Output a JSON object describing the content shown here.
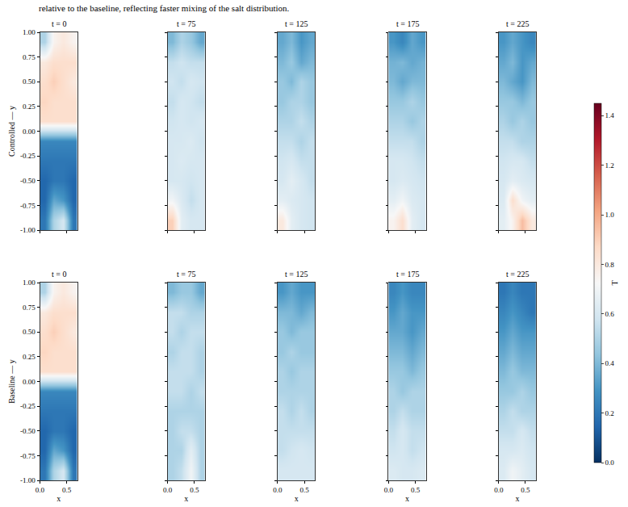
{
  "chart_data": {
    "type": "heatmap",
    "subtitle": "relative to the baseline, reflecting faster mixing of the salt distribution.",
    "panel_titles": [
      "t = 0",
      "t = 75",
      "t = 125",
      "t = 175",
      "t = 225"
    ],
    "xlabel": "x",
    "x": [
      0.0875,
      0.2625,
      0.4375,
      0.6125
    ],
    "y": [
      -0.9,
      -0.7,
      -0.5,
      -0.3,
      -0.1,
      0.1,
      0.3,
      0.5,
      0.7,
      0.9
    ],
    "xlim": [
      0,
      0.7
    ],
    "xticks": [
      {
        "value": 0,
        "label": "0.0"
      },
      0.5
    ],
    "ylim": [
      -1,
      1
    ],
    "yticks": [
      {
        "value": -1,
        "label": "-1.00"
      },
      -0.75,
      {
        "value": -0.5,
        "label": "-0.50"
      },
      -0.25,
      {
        "value": 0,
        "label": "0.00"
      },
      0.25,
      {
        "value": 0.5,
        "label": "0.50"
      },
      0.75,
      {
        "value": 1,
        "label": "1.00"
      }
    ],
    "colorbar": {
      "label": "T",
      "range": [
        0,
        1.45
      ],
      "ticks": [
        {
          "value": 0,
          "label": "0.0"
        },
        0.2,
        0.4,
        0.6,
        0.8,
        {
          "value": 1,
          "label": "1.0"
        },
        1.2,
        1.4
      ]
    },
    "rows": [
      {
        "ylabel": "Controlled — y",
        "cells": [
          [
            [
              0.2,
              0.5,
              0.6,
              0.2
            ],
            [
              0.15,
              0.35,
              0.3,
              0.15
            ],
            [
              0.15,
              0.2,
              0.2,
              0.15
            ],
            [
              0.2,
              0.2,
              0.2,
              0.2
            ],
            [
              0.25,
              0.25,
              0.25,
              0.25
            ],
            [
              0.85,
              0.85,
              0.85,
              0.85
            ],
            [
              0.88,
              0.85,
              0.85,
              0.85
            ],
            [
              0.85,
              0.9,
              0.85,
              0.8
            ],
            [
              0.8,
              0.85,
              0.85,
              0.85
            ],
            [
              0.5,
              0.75,
              0.8,
              0.75
            ]
          ],
          [
            [
              0.9,
              0.65,
              0.6,
              0.6
            ],
            [
              0.7,
              0.62,
              0.55,
              0.6
            ],
            [
              0.6,
              0.6,
              0.58,
              0.6
            ],
            [
              0.6,
              0.62,
              0.6,
              0.6
            ],
            [
              0.6,
              0.6,
              0.62,
              0.58
            ],
            [
              0.58,
              0.6,
              0.58,
              0.6
            ],
            [
              0.55,
              0.6,
              0.58,
              0.55
            ],
            [
              0.58,
              0.55,
              0.6,
              0.58
            ],
            [
              0.55,
              0.58,
              0.55,
              0.55
            ],
            [
              0.4,
              0.5,
              0.45,
              0.35
            ]
          ],
          [
            [
              0.8,
              0.65,
              0.6,
              0.58
            ],
            [
              0.65,
              0.62,
              0.6,
              0.58
            ],
            [
              0.6,
              0.65,
              0.6,
              0.55
            ],
            [
              0.58,
              0.6,
              0.55,
              0.55
            ],
            [
              0.55,
              0.55,
              0.5,
              0.55
            ],
            [
              0.5,
              0.5,
              0.55,
              0.5
            ],
            [
              0.45,
              0.5,
              0.5,
              0.45
            ],
            [
              0.45,
              0.4,
              0.5,
              0.45
            ],
            [
              0.4,
              0.45,
              0.35,
              0.4
            ],
            [
              0.35,
              0.4,
              0.3,
              0.35
            ]
          ],
          [
            [
              0.75,
              0.85,
              0.65,
              0.6
            ],
            [
              0.65,
              0.7,
              0.62,
              0.6
            ],
            [
              0.6,
              0.62,
              0.6,
              0.58
            ],
            [
              0.6,
              0.6,
              0.58,
              0.55
            ],
            [
              0.55,
              0.55,
              0.55,
              0.5
            ],
            [
              0.5,
              0.5,
              0.45,
              0.5
            ],
            [
              0.45,
              0.45,
              0.5,
              0.45
            ],
            [
              0.4,
              0.35,
              0.4,
              0.4
            ],
            [
              0.38,
              0.4,
              0.35,
              0.38
            ],
            [
              0.3,
              0.25,
              0.35,
              0.3
            ]
          ],
          [
            [
              0.65,
              0.75,
              0.95,
              0.8
            ],
            [
              0.62,
              0.85,
              0.7,
              0.65
            ],
            [
              0.6,
              0.65,
              0.62,
              0.6
            ],
            [
              0.58,
              0.6,
              0.6,
              0.55
            ],
            [
              0.55,
              0.55,
              0.5,
              0.5
            ],
            [
              0.5,
              0.45,
              0.5,
              0.45
            ],
            [
              0.45,
              0.45,
              0.4,
              0.45
            ],
            [
              0.4,
              0.35,
              0.3,
              0.4
            ],
            [
              0.35,
              0.4,
              0.3,
              0.35
            ],
            [
              0.3,
              0.35,
              0.3,
              0.25
            ]
          ]
        ]
      },
      {
        "ylabel": "Baseline — y",
        "cells": [
          [
            [
              0.2,
              0.5,
              0.6,
              0.2
            ],
            [
              0.15,
              0.35,
              0.3,
              0.15
            ],
            [
              0.15,
              0.2,
              0.2,
              0.15
            ],
            [
              0.2,
              0.2,
              0.2,
              0.2
            ],
            [
              0.25,
              0.25,
              0.25,
              0.25
            ],
            [
              0.85,
              0.85,
              0.85,
              0.85
            ],
            [
              0.88,
              0.85,
              0.85,
              0.85
            ],
            [
              0.85,
              0.9,
              0.85,
              0.8
            ],
            [
              0.8,
              0.85,
              0.85,
              0.85
            ],
            [
              0.5,
              0.75,
              0.8,
              0.75
            ]
          ],
          [
            [
              0.5,
              0.55,
              0.7,
              0.5
            ],
            [
              0.5,
              0.5,
              0.65,
              0.5
            ],
            [
              0.5,
              0.55,
              0.55,
              0.5
            ],
            [
              0.5,
              0.5,
              0.5,
              0.5
            ],
            [
              0.55,
              0.55,
              0.5,
              0.55
            ],
            [
              0.55,
              0.55,
              0.55,
              0.5
            ],
            [
              0.5,
              0.55,
              0.55,
              0.5
            ],
            [
              0.55,
              0.5,
              0.55,
              0.55
            ],
            [
              0.55,
              0.55,
              0.5,
              0.5
            ],
            [
              0.4,
              0.45,
              0.45,
              0.35
            ]
          ],
          [
            [
              0.6,
              0.6,
              0.6,
              0.6
            ],
            [
              0.55,
              0.58,
              0.6,
              0.58
            ],
            [
              0.55,
              0.55,
              0.55,
              0.55
            ],
            [
              0.55,
              0.5,
              0.55,
              0.5
            ],
            [
              0.5,
              0.5,
              0.5,
              0.5
            ],
            [
              0.5,
              0.45,
              0.5,
              0.5
            ],
            [
              0.45,
              0.5,
              0.45,
              0.45
            ],
            [
              0.45,
              0.4,
              0.45,
              0.45
            ],
            [
              0.4,
              0.4,
              0.35,
              0.4
            ],
            [
              0.3,
              0.35,
              0.3,
              0.3
            ]
          ],
          [
            [
              0.62,
              0.6,
              0.6,
              0.62
            ],
            [
              0.58,
              0.6,
              0.55,
              0.58
            ],
            [
              0.55,
              0.6,
              0.55,
              0.55
            ],
            [
              0.5,
              0.55,
              0.5,
              0.5
            ],
            [
              0.5,
              0.45,
              0.5,
              0.5
            ],
            [
              0.45,
              0.45,
              0.4,
              0.45
            ],
            [
              0.4,
              0.4,
              0.35,
              0.4
            ],
            [
              0.35,
              0.35,
              0.3,
              0.35
            ],
            [
              0.3,
              0.35,
              0.3,
              0.3
            ],
            [
              0.25,
              0.3,
              0.25,
              0.25
            ]
          ],
          [
            [
              0.62,
              0.7,
              0.65,
              0.6
            ],
            [
              0.6,
              0.6,
              0.62,
              0.58
            ],
            [
              0.55,
              0.55,
              0.6,
              0.55
            ],
            [
              0.5,
              0.55,
              0.5,
              0.5
            ],
            [
              0.45,
              0.45,
              0.5,
              0.45
            ],
            [
              0.4,
              0.45,
              0.4,
              0.4
            ],
            [
              0.35,
              0.4,
              0.35,
              0.35
            ],
            [
              0.3,
              0.35,
              0.3,
              0.3
            ],
            [
              0.25,
              0.3,
              0.25,
              0.2
            ],
            [
              0.2,
              0.25,
              0.2,
              0.2
            ]
          ]
        ]
      }
    ]
  }
}
